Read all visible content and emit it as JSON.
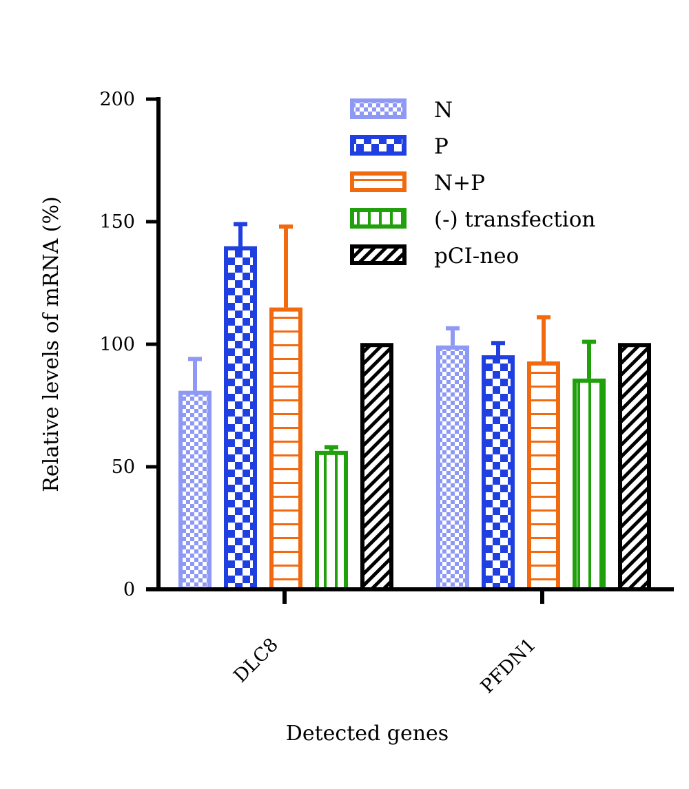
{
  "chart_data": {
    "type": "bar",
    "xlabel": "Detected genes",
    "ylabel": "Relative levels of mRNA (%)",
    "ylim": [
      0,
      200
    ],
    "yticks": [
      0,
      50,
      100,
      150,
      200
    ],
    "categories": [
      "DLC8",
      "PFDN1"
    ],
    "legend_position": "top-right",
    "grid": false,
    "series": [
      {
        "name": "N",
        "values": [
          81,
          99.5
        ],
        "errors": [
          13,
          7
        ],
        "color": "#8e98f5",
        "pattern": "checker-fine"
      },
      {
        "name": "P",
        "values": [
          140,
          95.5
        ],
        "errors": [
          9,
          5
        ],
        "color": "#1f3fe0",
        "pattern": "checker-coarse"
      },
      {
        "name": "N+P",
        "values": [
          115,
          93
        ],
        "errors": [
          33,
          18
        ],
        "color": "#f26a10",
        "pattern": "horizontal-lines"
      },
      {
        "name": "(-) transfection",
        "values": [
          56.5,
          86
        ],
        "errors": [
          1.5,
          15
        ],
        "color": "#20a00a",
        "pattern": "vertical-lines"
      },
      {
        "name": "pCI-neo",
        "values": [
          100.5,
          100.5
        ],
        "errors": [
          0,
          0
        ],
        "color": "#000000",
        "pattern": "diagonal-hatch"
      }
    ]
  }
}
